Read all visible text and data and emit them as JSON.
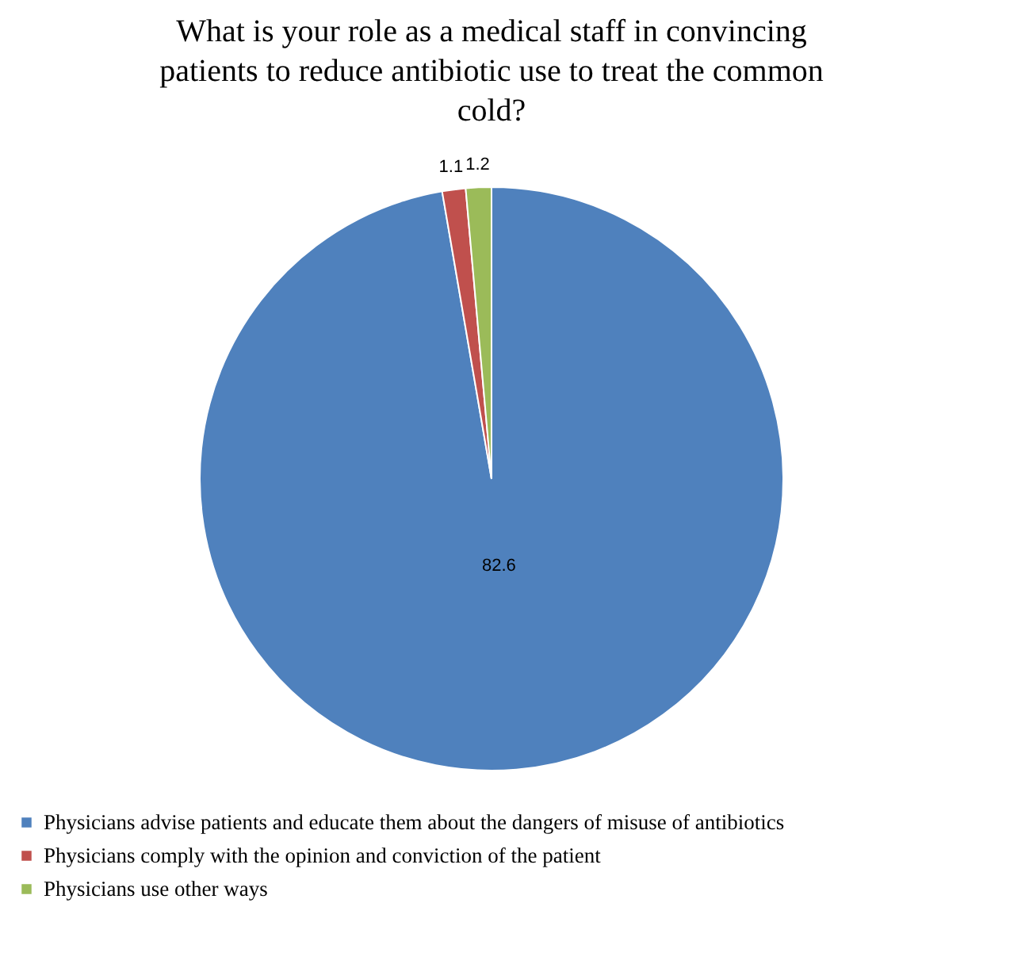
{
  "chart_data": {
    "type": "pie",
    "title": "What is your role as a medical staff in convincing patients to reduce antibiotic use to treat the common cold?",
    "categories": [
      "Physicians advise patients and educate them about the dangers of misuse of antibiotics",
      "Physicians comply with the opinion and conviction of the patient",
      "Physicians use other ways"
    ],
    "values": [
      82.6,
      1.1,
      1.2
    ],
    "colors": [
      "#4f81bd",
      "#c0504d",
      "#9bbb59"
    ],
    "data_labels": true,
    "legend": "bottom"
  }
}
